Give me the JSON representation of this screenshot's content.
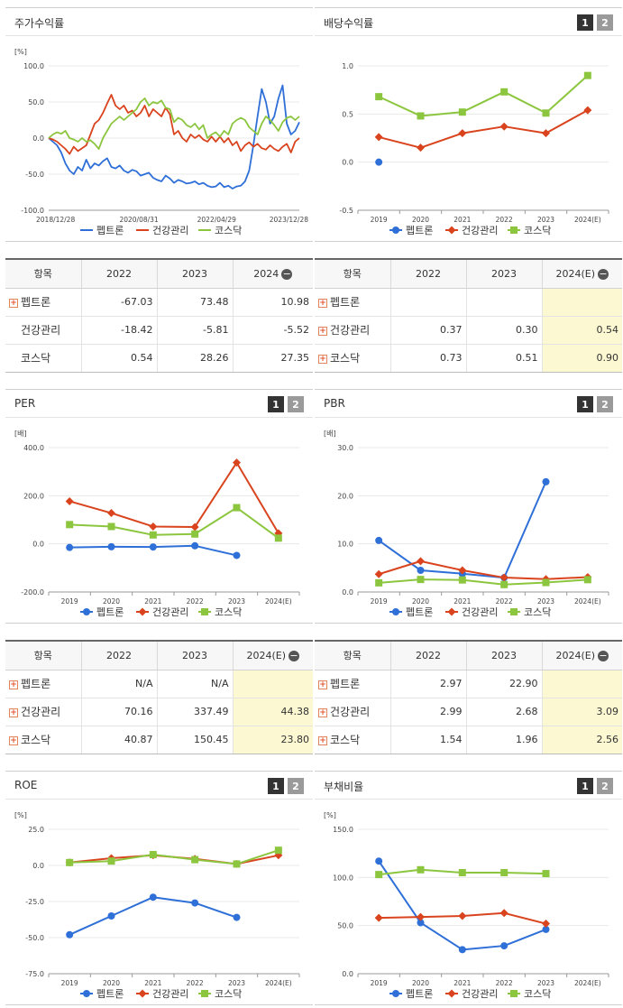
{
  "ui": {
    "btn1": "1",
    "btn2": "2",
    "collapse": "−",
    "expand": "+"
  },
  "chart_data": [
    {
      "id": "stock",
      "title": "주가수익률",
      "type": "line",
      "unit": "[%]",
      "ylim": [
        -100,
        100
      ],
      "yticks": [
        "100.0",
        "50.0",
        "0.0",
        "-50.0",
        "-100.0"
      ],
      "xticks": [
        "2018/12/28",
        "2020/08/31",
        "2022/04/29",
        "2023/12/28"
      ],
      "xlim": [
        0,
        60
      ],
      "series": [
        {
          "name": "펩트론",
          "color": "#2f6fd8",
          "values": [
            0,
            -5,
            -10,
            -20,
            -35,
            -45,
            -50,
            -40,
            -45,
            -30,
            -42,
            -35,
            -38,
            -32,
            -28,
            -40,
            -42,
            -38,
            -45,
            -48,
            -44,
            -46,
            -52,
            -50,
            -48,
            -55,
            -58,
            -60,
            -52,
            -56,
            -62,
            -58,
            -60,
            -63,
            -62,
            -60,
            -64,
            -62,
            -66,
            -68,
            -67,
            -62,
            -68,
            -66,
            -70,
            -67,
            -66,
            -60,
            -45,
            -10,
            30,
            68,
            50,
            20,
            30,
            55,
            73,
            20,
            5,
            10,
            22
          ]
        },
        {
          "name": "건강관리",
          "color": "#d9441e",
          "values": [
            0,
            -2,
            -5,
            -10,
            -15,
            -22,
            -12,
            -18,
            -14,
            -10,
            5,
            20,
            25,
            35,
            48,
            60,
            45,
            40,
            45,
            35,
            38,
            30,
            35,
            45,
            30,
            40,
            35,
            30,
            42,
            33,
            5,
            10,
            0,
            -5,
            5,
            0,
            4,
            -2,
            -5,
            2,
            -5,
            2,
            -6,
            0,
            -10,
            -5,
            -18,
            -10,
            -6,
            -12,
            -8,
            -14,
            -16,
            -10,
            -15,
            -18,
            -12,
            -8,
            -20,
            -5,
            0
          ]
        },
        {
          "name": "코스닥",
          "color": "#8cc63f",
          "values": [
            0,
            5,
            8,
            6,
            10,
            0,
            -2,
            -5,
            0,
            -5,
            -3,
            -8,
            -15,
            0,
            10,
            20,
            25,
            30,
            25,
            30,
            35,
            40,
            50,
            55,
            45,
            50,
            48,
            52,
            42,
            40,
            22,
            28,
            25,
            18,
            15,
            20,
            12,
            18,
            0,
            5,
            8,
            2,
            10,
            5,
            20,
            25,
            28,
            25,
            15,
            10,
            5,
            20,
            30,
            25,
            18,
            10,
            22,
            28,
            30,
            25,
            30
          ]
        }
      ]
    },
    {
      "id": "dividend",
      "title": "배당수익률",
      "type": "line",
      "unit": "",
      "ylim": [
        -0.5,
        1.0
      ],
      "yticks": [
        "1.0",
        "0.5",
        "0.0",
        "-0.5"
      ],
      "categories": [
        "2019",
        "2020",
        "2021",
        "2022",
        "2023",
        "2024(E)"
      ],
      "series": [
        {
          "name": "펩트론",
          "color": "#2f6fd8",
          "marker": "circle",
          "values": [
            0.0,
            null,
            null,
            null,
            null,
            null
          ]
        },
        {
          "name": "건강관리",
          "color": "#d9441e",
          "marker": "diamond",
          "values": [
            0.26,
            0.15,
            0.3,
            0.37,
            0.3,
            0.54
          ]
        },
        {
          "name": "코스닥",
          "color": "#8cc63f",
          "marker": "square",
          "values": [
            0.68,
            0.48,
            0.52,
            0.73,
            0.51,
            0.9
          ]
        }
      ]
    },
    {
      "id": "per",
      "title": "PER",
      "type": "line",
      "unit": "[배]",
      "ylim": [
        -200,
        400
      ],
      "yticks": [
        "400.0",
        "200.0",
        "0.0",
        "-200.0"
      ],
      "categories": [
        "2019",
        "2020",
        "2021",
        "2022",
        "2023",
        "2024(E)"
      ],
      "series": [
        {
          "name": "펩트론",
          "color": "#2f6fd8",
          "marker": "circle",
          "values": [
            -15,
            -12,
            -13,
            -8,
            -48,
            null
          ]
        },
        {
          "name": "건강관리",
          "color": "#d9441e",
          "marker": "diamond",
          "values": [
            177,
            128,
            72,
            70.16,
            337.49,
            44.38
          ]
        },
        {
          "name": "코스닥",
          "color": "#8cc63f",
          "marker": "square",
          "values": [
            80,
            72,
            37,
            40.87,
            150.45,
            23.8
          ]
        }
      ]
    },
    {
      "id": "pbr",
      "title": "PBR",
      "type": "line",
      "unit": "[배]",
      "ylim": [
        0,
        30
      ],
      "yticks": [
        "30.0",
        "20.0",
        "10.0",
        "0.0"
      ],
      "categories": [
        "2019",
        "2020",
        "2021",
        "2022",
        "2023",
        "2024(E)"
      ],
      "series": [
        {
          "name": "펩트론",
          "color": "#2f6fd8",
          "marker": "circle",
          "values": [
            10.7,
            4.5,
            3.8,
            2.97,
            22.9,
            null
          ]
        },
        {
          "name": "건강관리",
          "color": "#d9441e",
          "marker": "diamond",
          "values": [
            3.7,
            6.4,
            4.5,
            2.99,
            2.68,
            3.09
          ]
        },
        {
          "name": "코스닥",
          "color": "#8cc63f",
          "marker": "square",
          "values": [
            1.9,
            2.6,
            2.5,
            1.54,
            1.96,
            2.56
          ]
        }
      ]
    },
    {
      "id": "roe",
      "title": "ROE",
      "type": "line",
      "unit": "[%]",
      "ylim": [
        -75,
        25
      ],
      "yticks": [
        "25.0",
        "0.0",
        "-25.0",
        "-50.0",
        "-75.0"
      ],
      "categories": [
        "2019",
        "2020",
        "2021",
        "2022",
        "2023",
        "2024(E)"
      ],
      "series": [
        {
          "name": "펩트론",
          "color": "#2f6fd8",
          "marker": "circle",
          "values": [
            -48,
            -35,
            -22,
            -26,
            -36,
            null
          ]
        },
        {
          "name": "건강관리",
          "color": "#d9441e",
          "marker": "diamond",
          "values": [
            2,
            5,
            7,
            4.5,
            1,
            7
          ]
        },
        {
          "name": "코스닥",
          "color": "#8cc63f",
          "marker": "square",
          "values": [
            2,
            3,
            7.5,
            4,
            1,
            10.5
          ]
        }
      ]
    },
    {
      "id": "debt",
      "title": "부채비율",
      "type": "line",
      "unit": "[%]",
      "ylim": [
        0,
        150
      ],
      "yticks": [
        "150.0",
        "100.0",
        "50.0",
        "0.0"
      ],
      "categories": [
        "2019",
        "2020",
        "2021",
        "2022",
        "2023",
        "2024(E)"
      ],
      "series": [
        {
          "name": "펩트론",
          "color": "#2f6fd8",
          "marker": "circle",
          "values": [
            117,
            53,
            25,
            29,
            46,
            null
          ]
        },
        {
          "name": "건강관리",
          "color": "#d9441e",
          "marker": "diamond",
          "values": [
            58,
            59,
            60,
            63,
            52,
            null
          ]
        },
        {
          "name": "코스닥",
          "color": "#8cc63f",
          "marker": "square",
          "values": [
            103,
            108,
            105,
            105,
            104,
            null
          ]
        }
      ]
    }
  ],
  "tables": [
    {
      "id": "t_stock",
      "headers": [
        "항목",
        "2022",
        "2023",
        "2024"
      ],
      "rows": [
        {
          "name": "펩트론",
          "plus": true,
          "cells": [
            "-67.03",
            "73.48",
            "10.98"
          ]
        },
        {
          "name": "건강관리",
          "plus": false,
          "cells": [
            "-18.42",
            "-5.81",
            "-5.52"
          ]
        },
        {
          "name": "코스닥",
          "plus": false,
          "cells": [
            "0.54",
            "28.26",
            "27.35"
          ]
        }
      ]
    },
    {
      "id": "t_div",
      "headers": [
        "항목",
        "2022",
        "2023",
        "2024(E)"
      ],
      "rows": [
        {
          "name": "펩트론",
          "plus": true,
          "cells": [
            "",
            "",
            ""
          ]
        },
        {
          "name": "건강관리",
          "plus": true,
          "cells": [
            "0.37",
            "0.30",
            "0.54"
          ]
        },
        {
          "name": "코스닥",
          "plus": true,
          "cells": [
            "0.73",
            "0.51",
            "0.90"
          ]
        }
      ]
    },
    {
      "id": "t_per",
      "headers": [
        "항목",
        "2022",
        "2023",
        "2024(E)"
      ],
      "rows": [
        {
          "name": "펩트론",
          "plus": true,
          "cells": [
            "N/A",
            "N/A",
            ""
          ]
        },
        {
          "name": "건강관리",
          "plus": true,
          "cells": [
            "70.16",
            "337.49",
            "44.38"
          ]
        },
        {
          "name": "코스닥",
          "plus": true,
          "cells": [
            "40.87",
            "150.45",
            "23.80"
          ]
        }
      ]
    },
    {
      "id": "t_pbr",
      "headers": [
        "항목",
        "2022",
        "2023",
        "2024(E)"
      ],
      "rows": [
        {
          "name": "펩트론",
          "plus": true,
          "cells": [
            "2.97",
            "22.90",
            ""
          ]
        },
        {
          "name": "건강관리",
          "plus": true,
          "cells": [
            "2.99",
            "2.68",
            "3.09"
          ]
        },
        {
          "name": "코스닥",
          "plus": true,
          "cells": [
            "1.54",
            "1.96",
            "2.56"
          ]
        }
      ]
    }
  ]
}
